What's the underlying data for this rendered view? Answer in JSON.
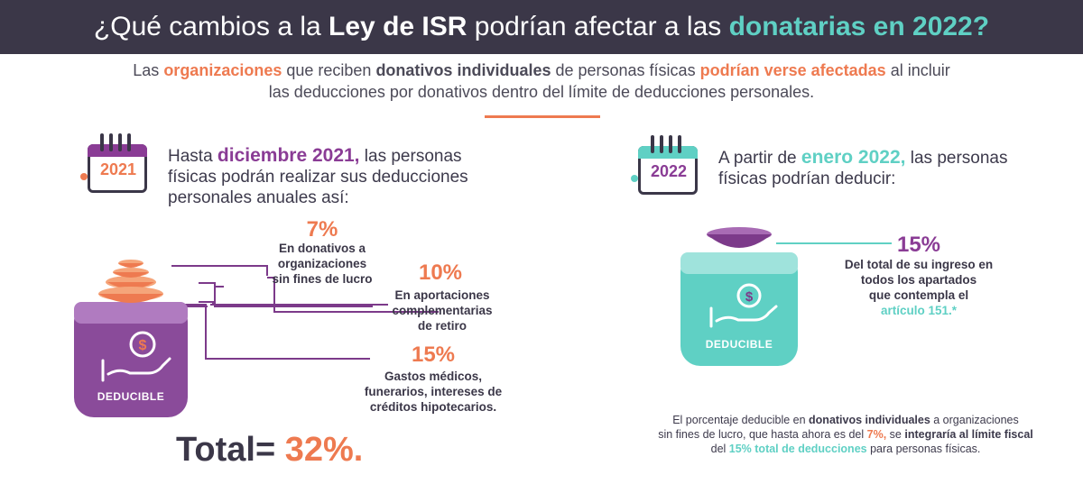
{
  "banner": {
    "part1": "¿Qué cambios a la ",
    "part2": "Ley de ISR",
    "part3": " podrían afectar a las ",
    "part4": "donatarias en 2022?"
  },
  "intro": {
    "t1": "Las ",
    "t2": "organizaciones",
    "t3": " que reciben ",
    "t4": "donativos individuales",
    "t5": " de personas físicas ",
    "t6": "podrían verse afectadas",
    "t7": " al  incluir",
    "t8": "las deducciones por donativos dentro del límite de deducciones personales."
  },
  "left": {
    "year": "2021",
    "lead1": "Hasta ",
    "lead2": "diciembre 2021,",
    "lead3": " las personas",
    "lead4": "físicas podrán realizar sus deducciones",
    "lead5": "personales anuales así:",
    "items": [
      {
        "pct": "7%",
        "l1": "En donativos a",
        "l2": "organizaciones",
        "l3": "sin fines de lucro"
      },
      {
        "pct": "10%",
        "l1": "En aportaciones",
        "l2": "complementarias",
        "l3": "de retiro"
      },
      {
        "pct": "15%",
        "l1": "Gastos médicos,",
        "l2": "funerarios, intereses de",
        "l3": "créditos hipotecarios."
      }
    ],
    "jar_label": "DEDUCIBLE",
    "total1": "Total= ",
    "total2": "32%."
  },
  "right": {
    "year": "2022",
    "lead1": "A partir de ",
    "lead2": "enero 2022,",
    "lead3": " las personas",
    "lead4": "físicas podrían deducir:",
    "pct": "15%",
    "d1": "Del total de su ingreso en",
    "d2": "todos los  apartados",
    "d3": "que contempla el",
    "d4": "artículo 151.*",
    "jar_label": "DEDUCIBLE"
  },
  "footnote": {
    "f1": "El porcentaje deducible en ",
    "f2": "donativos individuales",
    "f3": " a organizaciones",
    "f4": "sin fines de lucro, que hasta ahora es del ",
    "f5": "7%,",
    "f6": " se ",
    "f7": "integraría al límite fiscal",
    "f8": "del ",
    "f9": "15% total de deducciones",
    "f10": " para personas físicas."
  },
  "colors": {
    "navy": "#3b3748",
    "orange": "#ee7a50",
    "purple": "#8a3c95",
    "teal": "#5fd0c4"
  }
}
